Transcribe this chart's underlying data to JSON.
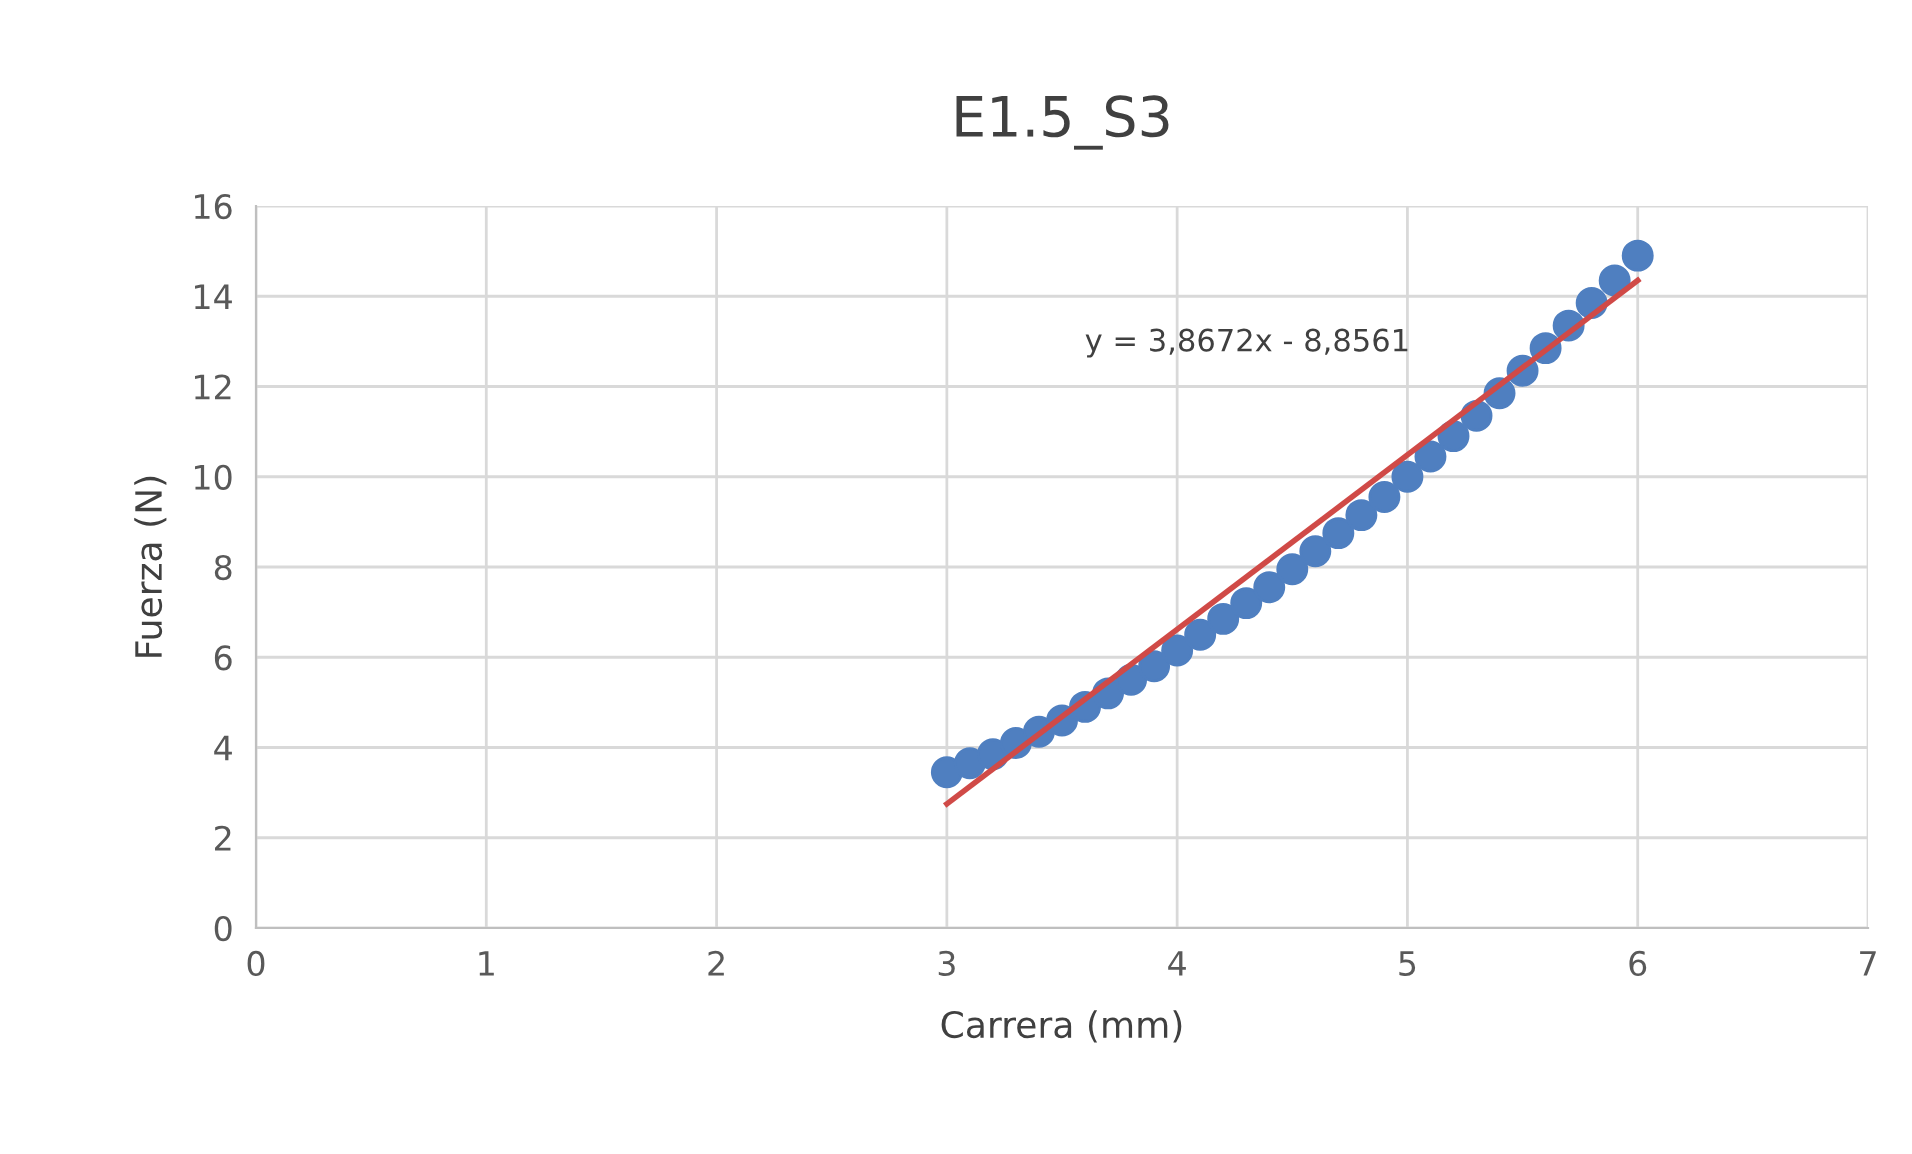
{
  "chart_data": {
    "type": "scatter",
    "title": "E1.5_S3",
    "xlabel": "Carrera (mm)",
    "ylabel": "Fuerza (N)",
    "series": [
      {
        "color": "#4f7fc0",
        "marker": "circle",
        "x": [
          3.0,
          3.1,
          3.2,
          3.3,
          3.4,
          3.5,
          3.6,
          3.7,
          3.8,
          3.9,
          4.0,
          4.1,
          4.2,
          4.3,
          4.4,
          4.5,
          4.6,
          4.7,
          4.8,
          4.9,
          5.0,
          5.1,
          5.2,
          5.3,
          5.4,
          5.5,
          5.6,
          5.7,
          5.8,
          5.9,
          6.0
        ],
        "values": [
          3.45,
          3.65,
          3.85,
          4.1,
          4.35,
          4.6,
          4.9,
          5.2,
          5.5,
          5.8,
          6.15,
          6.5,
          6.85,
          7.2,
          7.55,
          7.95,
          8.35,
          8.75,
          9.15,
          9.55,
          10.0,
          10.45,
          10.9,
          11.35,
          11.85,
          12.35,
          12.85,
          13.35,
          13.85,
          14.35,
          14.9
        ]
      },
      {
        "type": "line",
        "color": "#d04a47",
        "marker": "none",
        "x": [
          3,
          6
        ],
        "values": [
          2.75,
          14.35
        ]
      }
    ],
    "annotations": [
      "y = 3,8672x - 8,8561"
    ],
    "xlim": [
      0,
      7
    ],
    "ylim": [
      0,
      16
    ],
    "xticks": [
      0,
      1,
      2,
      3,
      4,
      5,
      6,
      7
    ],
    "yticks": [
      0,
      2,
      4,
      6,
      8,
      10,
      12,
      14,
      16
    ],
    "grid": true,
    "legend": false
  }
}
